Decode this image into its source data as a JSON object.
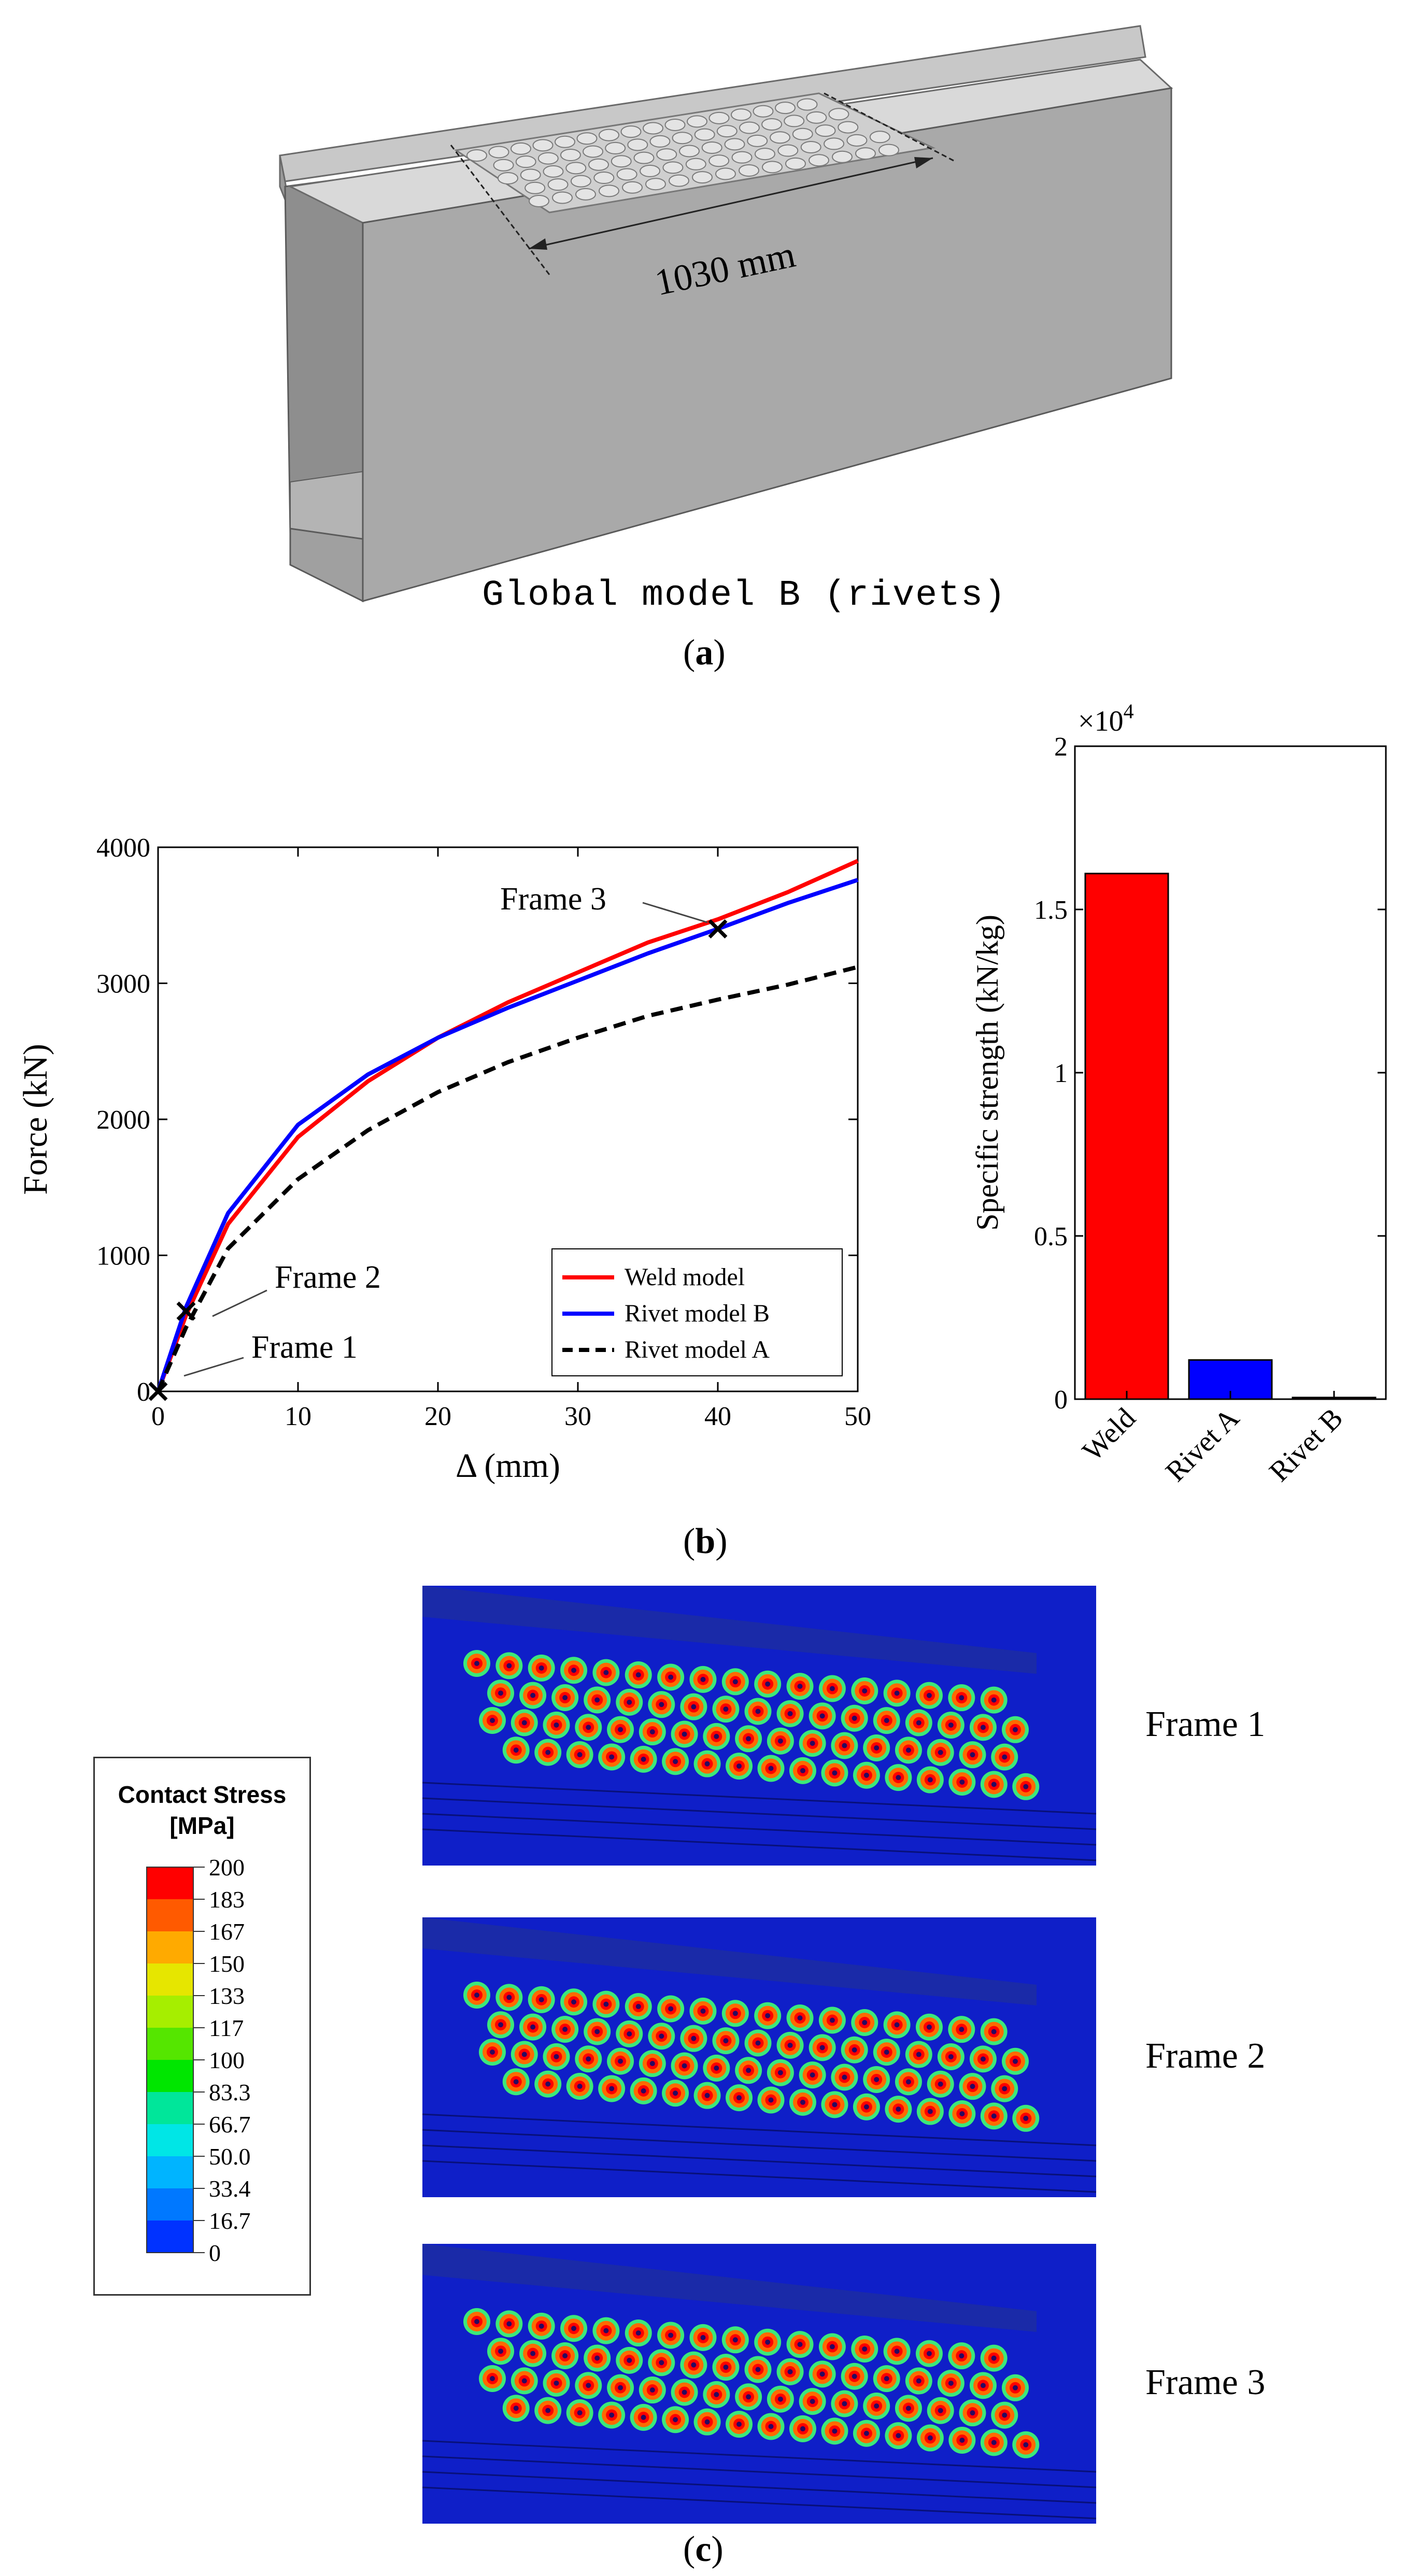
{
  "panel_a": {
    "dimension_label": "1030 mm",
    "caption": "Global model B (rivets)",
    "label_prefix": "(",
    "label": "a",
    "label_suffix": ")"
  },
  "panel_b": {
    "label_prefix": "(",
    "label": "b",
    "label_suffix": ")"
  },
  "panel_c": {
    "label_prefix": "(",
    "label": "c",
    "label_suffix": ")",
    "colorbar": {
      "title_line1": "Contact Stress",
      "title_line2": "[MPa]",
      "levels": [
        "200",
        "183",
        "167",
        "150",
        "133",
        "117",
        "100",
        "83.3",
        "66.7",
        "50.0",
        "33.4",
        "16.7",
        "0"
      ],
      "colors": [
        "#ff0000",
        "#ff5a00",
        "#ffaa00",
        "#e6e600",
        "#a6ee00",
        "#55e600",
        "#00e600",
        "#00e69a",
        "#00e6e6",
        "#00b4ff",
        "#0078ff",
        "#0032ff"
      ]
    },
    "frames": [
      {
        "label": "Frame 1"
      },
      {
        "label": "Frame 2"
      },
      {
        "label": "Frame 3"
      }
    ]
  },
  "chart_data": [
    {
      "type": "line",
      "title": "",
      "xlabel": "Δ (mm)",
      "ylabel": "Force (kN)",
      "xlim": [
        0,
        50
      ],
      "ylim": [
        0,
        4000
      ],
      "xticks": [
        "0",
        "10",
        "20",
        "30",
        "40",
        "50"
      ],
      "yticks": [
        "0",
        "1000",
        "2000",
        "3000",
        "4000"
      ],
      "legend_position": "bottom-right",
      "series": [
        {
          "name": "Weld model",
          "color": "#ff0000",
          "dash": "solid",
          "x": [
            0,
            2,
            5,
            10,
            15,
            20,
            25,
            30,
            35,
            40,
            45,
            50
          ],
          "y": [
            0,
            560,
            1230,
            1870,
            2280,
            2600,
            2860,
            3080,
            3300,
            3470,
            3670,
            3900
          ]
        },
        {
          "name": "Rivet model B",
          "color": "#0000ff",
          "dash": "solid",
          "x": [
            0,
            2,
            5,
            10,
            15,
            20,
            25,
            30,
            35,
            40,
            45,
            50
          ],
          "y": [
            0,
            620,
            1310,
            1960,
            2330,
            2600,
            2820,
            3020,
            3220,
            3400,
            3590,
            3760
          ]
        },
        {
          "name": "Rivet model A",
          "color": "#000000",
          "dash": "dashed",
          "x": [
            0,
            2,
            5,
            10,
            15,
            20,
            25,
            30,
            35,
            40,
            45,
            50
          ],
          "y": [
            0,
            470,
            1050,
            1560,
            1920,
            2200,
            2420,
            2600,
            2760,
            2880,
            2990,
            3120
          ]
        }
      ],
      "markers": [
        {
          "label": "Frame 1",
          "x": 0,
          "y": 0
        },
        {
          "label": "Frame 2",
          "x": 2,
          "y": 590
        },
        {
          "label": "Frame 3",
          "x": 40,
          "y": 3400
        }
      ]
    },
    {
      "type": "bar",
      "title": "",
      "xlabel": "",
      "ylabel": "Specific strength (kN/kg)",
      "exponent_label": "×10",
      "exponent_power": "4",
      "ylim": [
        0,
        2
      ],
      "yticks": [
        "0",
        "0.5",
        "1",
        "1.5",
        "2"
      ],
      "categories": [
        "Weld",
        "Rivet A",
        "Rivet B"
      ],
      "values": [
        1.61,
        0.12,
        0.005
      ],
      "colors": [
        "#ff0000",
        "#0000ff",
        "#aa0000"
      ]
    }
  ]
}
